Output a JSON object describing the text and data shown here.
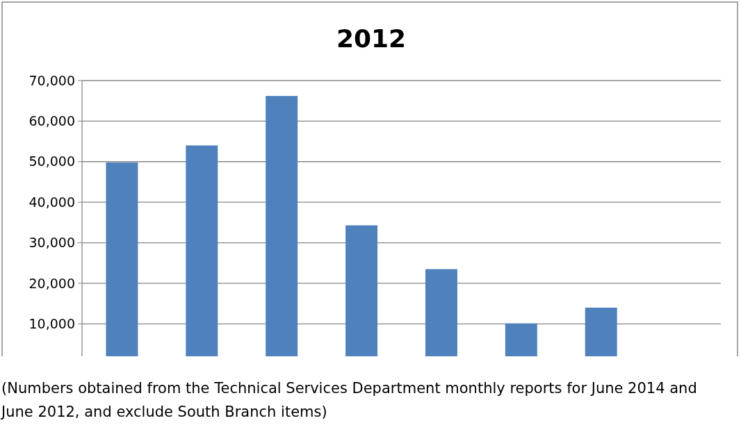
{
  "chart_data": {
    "type": "bar",
    "title": "2012",
    "categories": [
      null,
      null,
      null,
      null,
      null,
      null,
      null,
      null
    ],
    "values": [
      49800,
      54000,
      66200,
      34300,
      23500,
      10100,
      14000,
      null
    ],
    "color": "#4f81bd",
    "ylim": [
      2000,
      70000
    ],
    "yticks": [
      {
        "value": 10000,
        "label": "10,000"
      },
      {
        "value": 20000,
        "label": "20,000"
      },
      {
        "value": 30000,
        "label": "30,000"
      },
      {
        "value": 40000,
        "label": "40,000"
      },
      {
        "value": 50000,
        "label": "50,000"
      },
      {
        "value": 60000,
        "label": "60,000"
      },
      {
        "value": 70000,
        "label": "70,000"
      }
    ],
    "grid": "y",
    "annotations": [
      "(Numbers obtained from the Technical Services Department monthly reports for June 2014 and June 2012, and exclude South Branch items)"
    ]
  }
}
